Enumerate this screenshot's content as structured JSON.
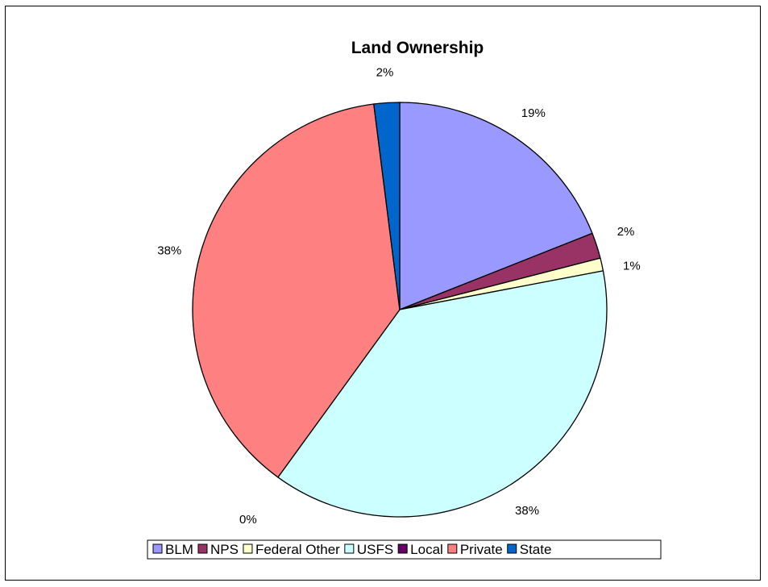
{
  "chart_data": {
    "type": "pie",
    "title": "Land Ownership",
    "categories": [
      "BLM",
      "NPS",
      "Federal Other",
      "USFS",
      "Local",
      "Private",
      "State"
    ],
    "values": [
      19,
      2,
      1,
      38,
      0,
      38,
      2
    ],
    "data_labels": [
      "19%",
      "2%",
      "1%",
      "38%",
      "0%",
      "38%",
      "2%"
    ],
    "colors": [
      "#9999FF",
      "#993366",
      "#FFFFCC",
      "#CCFFFF",
      "#660066",
      "#FF8080",
      "#0066CC"
    ],
    "legend_position": "bottom",
    "start_angle": "12 o'clock",
    "direction": "clockwise"
  }
}
